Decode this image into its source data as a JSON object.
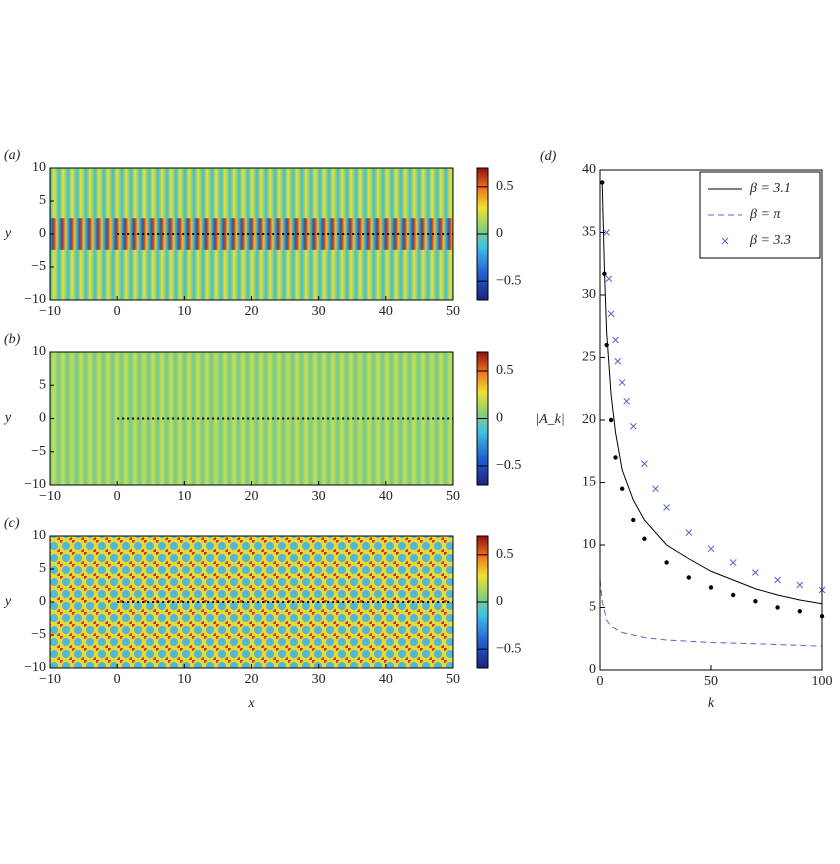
{
  "chart_data": [
    {
      "type": "heatmap",
      "panel_label": "(a)",
      "ylabel": "y",
      "xlim": [
        -10,
        50
      ],
      "xticks": [
        {
          "value": -10,
          "label": "−10"
        },
        0,
        10,
        20,
        30,
        40,
        50
      ],
      "ylim": [
        -10,
        10
      ],
      "yticks": [
        {
          "value": -10,
          "label": "−10"
        },
        {
          "value": -5,
          "label": "−5"
        },
        0,
        5,
        10
      ],
      "clim": [
        -0.7,
        0.7
      ],
      "cticks": [
        0.5,
        0,
        {
          "value": -0.5,
          "label": "−0.5"
        }
      ]
    },
    {
      "type": "heatmap",
      "panel_label": "(b)",
      "ylabel": "y",
      "xlim": [
        -10,
        50
      ],
      "xticks": [
        {
          "value": -10,
          "label": "−10"
        },
        0,
        10,
        20,
        30,
        40,
        50
      ],
      "ylim": [
        -10,
        10
      ],
      "yticks": [
        {
          "value": -10,
          "label": "−10"
        },
        {
          "value": -5,
          "label": "−5"
        },
        0,
        5,
        10
      ],
      "clim": [
        -0.7,
        0.7
      ],
      "cticks": [
        0.5,
        0,
        {
          "value": -0.5,
          "label": "−0.5"
        }
      ]
    },
    {
      "type": "heatmap",
      "panel_label": "(c)",
      "ylabel": "y",
      "xlabel": "x",
      "xlim": [
        -10,
        50
      ],
      "xticks": [
        {
          "value": -10,
          "label": "−10"
        },
        0,
        10,
        20,
        30,
        40,
        50
      ],
      "ylim": [
        -10,
        10
      ],
      "yticks": [
        {
          "value": -10,
          "label": "−10"
        },
        {
          "value": -5,
          "label": "−5"
        },
        0,
        5,
        10
      ],
      "clim": [
        -0.7,
        0.7
      ],
      "cticks": [
        0.5,
        0,
        {
          "value": -0.5,
          "label": "−0.5"
        }
      ]
    },
    {
      "type": "line",
      "panel_label": "(d)",
      "xlabel": "k",
      "ylabel": "|A_k|",
      "xlim": [
        0,
        100
      ],
      "xticks": [
        0,
        50,
        100
      ],
      "ylim": [
        0,
        40
      ],
      "yticks": [
        0,
        5,
        10,
        15,
        20,
        25,
        30,
        35,
        40
      ],
      "legend": "upper right",
      "series": [
        {
          "name": "β = 3.1",
          "color": "#000000",
          "style": "solid",
          "x": [
            1,
            2,
            3,
            5,
            7,
            10,
            15,
            20,
            30,
            40,
            50,
            60,
            70,
            80,
            90,
            100
          ],
          "values": [
            39,
            32,
            27,
            22,
            19,
            16,
            13.6,
            12,
            10,
            8.9,
            7.9,
            7.2,
            6.5,
            6,
            5.6,
            5.3
          ]
        },
        {
          "name": "β = π",
          "color": "#5566cc",
          "style": "dashed",
          "x": [
            0,
            1,
            3,
            5,
            10,
            20,
            30,
            50,
            70,
            100
          ],
          "values": [
            7.2,
            5.5,
            4,
            3.5,
            3,
            2.6,
            2.4,
            2.2,
            2.1,
            1.9
          ]
        },
        {
          "name": "β = 3.3",
          "color": "#5566cc",
          "style": "x",
          "x": [
            3,
            4,
            5,
            7,
            8,
            10,
            12,
            15,
            20,
            25,
            30,
            40,
            50,
            60,
            70,
            80,
            90,
            100
          ],
          "values": [
            35,
            31.3,
            28.5,
            26.4,
            24.7,
            23,
            21.5,
            19.5,
            16.5,
            14.5,
            13,
            11,
            9.7,
            8.6,
            7.8,
            7.2,
            6.8,
            6.4
          ]
        },
        {
          "color": "#000000",
          "style": "dot",
          "x": [
            1,
            2,
            3,
            5,
            7,
            10,
            15,
            20,
            30,
            40,
            50,
            60,
            70,
            80,
            90,
            100
          ],
          "values": [
            39,
            31.7,
            26,
            20,
            17,
            14.5,
            12,
            10.5,
            8.6,
            7.4,
            6.6,
            6,
            5.5,
            5,
            4.7,
            4.3
          ]
        }
      ]
    }
  ]
}
